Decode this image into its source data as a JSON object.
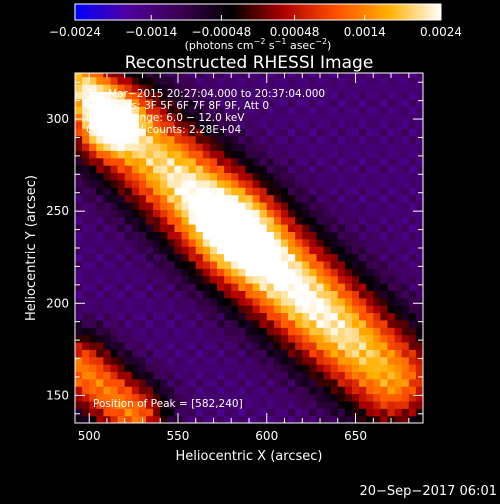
{
  "chart_data": {
    "type": "heatmap",
    "title": "Reconstructed RHESSI Image",
    "xlabel": "Heliocentric X (arcsec)",
    "ylabel": "Heliocentric Y (arcsec)",
    "xlim": [
      492,
      688
    ],
    "ylim": [
      135,
      325
    ],
    "x_ticks": [
      500,
      550,
      600,
      650
    ],
    "y_ticks": [
      150,
      200,
      250,
      300
    ],
    "colorbar": {
      "range": [
        -0.0024,
        0.0024
      ],
      "ticks": [
        -0.0024,
        -0.0014,
        -0.00048,
        0.00048,
        0.0014,
        0.0024
      ],
      "tick_labels": [
        "−0.0024",
        "−0.0014",
        "−0.00048",
        "0.00048",
        "0.0014",
        "0.0024"
      ],
      "unit_label_parts": [
        "(photons cm",
        "−2",
        " s",
        "−1",
        " asec",
        "−2",
        ")"
      ],
      "colormap": [
        "#0000ff",
        "#5000a0",
        "#3c0050",
        "#000000",
        "#b00000",
        "#ff5000",
        "#ffb000",
        "#ffffff"
      ]
    },
    "annotations": [
      "31−Mar−2015 20:27:04.000 to 20:37:04.000",
      "Detectors: 3F 5F 6F 7F 8F 9F, Att 0",
      "Energy Range: 6.0 − 12.0 keV",
      "Clean     Total counts: 2.28E+04",
      "Position of Peak = [582,240]"
    ],
    "peak": {
      "x": 582,
      "y": 240
    },
    "features": [
      {
        "name": "main-source-ridge",
        "x_start": 520,
        "y_start": 295,
        "x_end": 670,
        "y_end": 160,
        "sign": "positive"
      },
      {
        "name": "upper-left-source",
        "x_start": 495,
        "y_start": 320,
        "x_end": 510,
        "y_end": 300,
        "sign": "positive"
      },
      {
        "name": "lower-left-source",
        "x_start": 495,
        "y_start": 165,
        "x_end": 525,
        "y_end": 140,
        "sign": "positive"
      }
    ]
  },
  "footer": {
    "timestamp": "20−Sep−2017 06:01"
  }
}
